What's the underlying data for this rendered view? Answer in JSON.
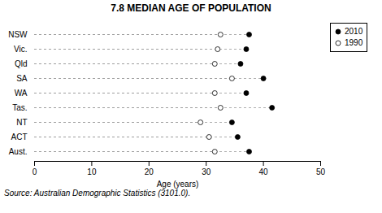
{
  "chart_data": {
    "type": "dot",
    "title": "7.8   MEDIAN AGE OF POPULATION",
    "xlabel": "Age (years)",
    "annotations": [
      "Source: Australian Demographic Statistics (3101.0)."
    ],
    "categories": [
      "NSW",
      "Vic.",
      "Qld",
      "SA",
      "WA",
      "Tas.",
      "NT",
      "ACT",
      "Aust."
    ],
    "series": [
      {
        "name": "2010",
        "color": "#000000",
        "marker": "circle",
        "values": [
          37.5,
          37.0,
          36.0,
          40.0,
          37.0,
          41.5,
          34.5,
          35.5,
          37.5
        ]
      },
      {
        "name": "1990",
        "color": "#ffffff",
        "marker": "circle",
        "values": [
          32.5,
          32.0,
          31.5,
          34.5,
          31.5,
          32.5,
          29.0,
          30.5,
          31.5
        ]
      }
    ],
    "xlim": [
      0,
      50
    ],
    "xticks": [
      0,
      10,
      20,
      30,
      40,
      50
    ],
    "color": "#999999",
    "line_style": "dashed",
    "orientation": "horizontal",
    "grid": false,
    "legend": "upper right"
  }
}
